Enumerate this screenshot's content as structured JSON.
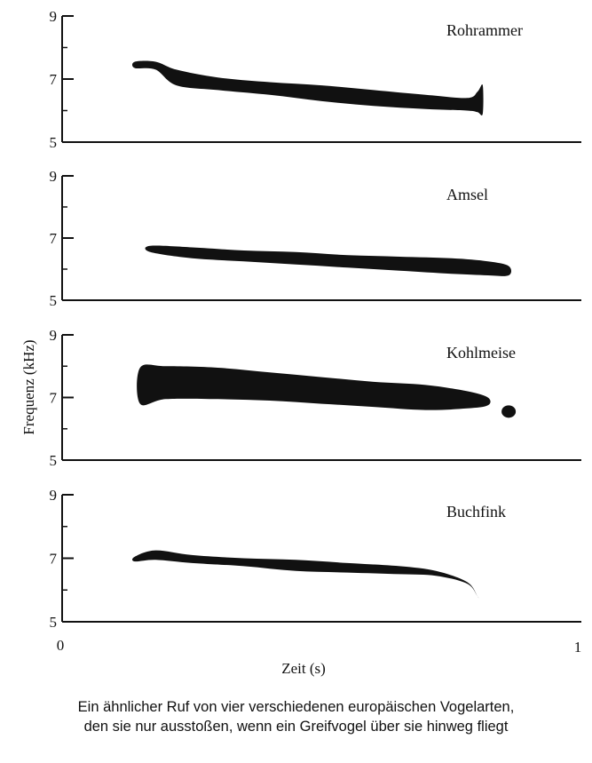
{
  "chart_data": {
    "type": "area",
    "ylabel": "Frequenz (kHz)",
    "xlabel": "Zeit (s)",
    "xlim": [
      0,
      1
    ],
    "x_ticks": [
      "0",
      "1"
    ],
    "ylim": [
      5,
      9
    ],
    "y_ticks": [
      "9",
      "7",
      "5"
    ],
    "series": [
      {
        "name": "Rohrammer",
        "t": [
          0.14,
          0.18,
          0.22,
          0.3,
          0.4,
          0.5,
          0.6,
          0.7,
          0.78,
          0.8,
          0.81
        ],
        "freq_high": [
          7.55,
          7.55,
          7.3,
          7.05,
          6.9,
          6.8,
          6.65,
          6.5,
          6.4,
          6.6,
          6.8
        ],
        "freq_low": [
          7.35,
          7.3,
          6.8,
          6.65,
          6.5,
          6.3,
          6.15,
          6.05,
          6.0,
          5.95,
          5.9
        ]
      },
      {
        "name": "Amsel",
        "t": [
          0.17,
          0.25,
          0.35,
          0.45,
          0.55,
          0.65,
          0.75,
          0.82,
          0.86
        ],
        "freq_high": [
          6.75,
          6.7,
          6.6,
          6.55,
          6.45,
          6.4,
          6.35,
          6.25,
          6.1
        ],
        "freq_low": [
          6.55,
          6.35,
          6.25,
          6.15,
          6.05,
          5.95,
          5.85,
          5.8,
          5.8
        ]
      },
      {
        "name": "Kohlmeise",
        "t": [
          0.15,
          0.2,
          0.3,
          0.4,
          0.5,
          0.6,
          0.7,
          0.78,
          0.82
        ],
        "freq_high": [
          7.95,
          8.0,
          7.95,
          7.8,
          7.65,
          7.5,
          7.4,
          7.2,
          7.0
        ],
        "freq_low": [
          6.8,
          6.95,
          6.95,
          6.9,
          6.8,
          6.7,
          6.6,
          6.65,
          6.75
        ],
        "extra_blob": {
          "t": 0.86,
          "freq": 6.55
        }
      },
      {
        "name": "Buchfink",
        "t": [
          0.14,
          0.18,
          0.25,
          0.35,
          0.45,
          0.55,
          0.65,
          0.72,
          0.78,
          0.8
        ],
        "freq_high": [
          7.05,
          7.25,
          7.1,
          7.0,
          6.95,
          6.85,
          6.75,
          6.6,
          6.25,
          5.8
        ],
        "freq_low": [
          6.9,
          6.95,
          6.85,
          6.75,
          6.6,
          6.55,
          6.5,
          6.45,
          6.2,
          5.8
        ]
      }
    ]
  },
  "caption": {
    "line1": "Ein ähnlicher Ruf von vier verschiedenen europäischen Vogelarten,",
    "line2": "den sie nur ausstoßen, wenn ein Greifvogel über sie hinweg fliegt"
  },
  "colors": {
    "ink": "#111111",
    "background": "#ffffff"
  }
}
